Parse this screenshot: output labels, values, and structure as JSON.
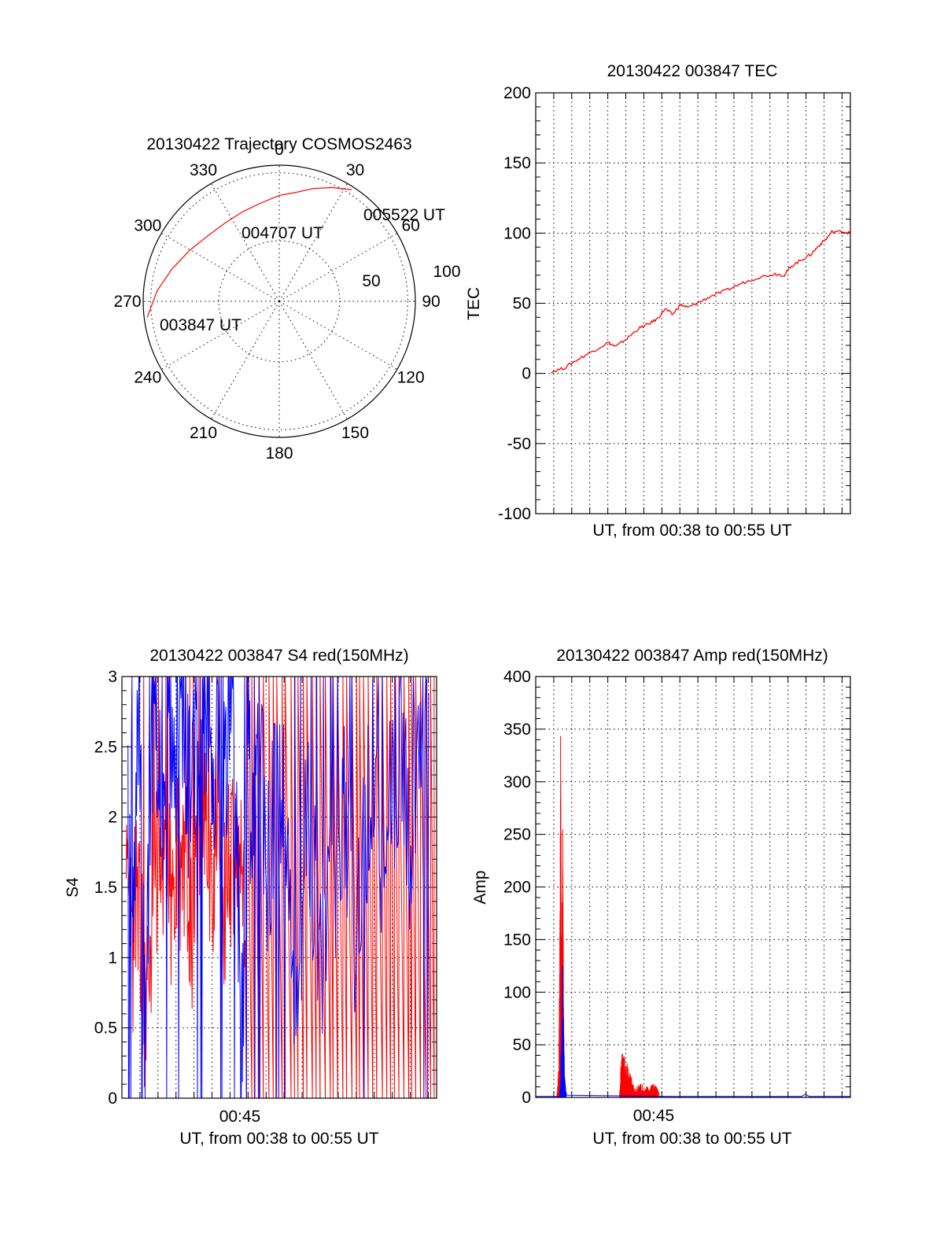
{
  "colors": {
    "red": "#ff0000",
    "blue": "#0000ff",
    "axis": "#000000"
  },
  "chart_data": [
    {
      "id": "polar",
      "type": "scatter",
      "title": "20130422 Trajectory COSMOS2463",
      "angle_labels": [
        "0",
        "30",
        "60",
        "90",
        "120",
        "150",
        "180",
        "210",
        "240",
        "270",
        "300",
        "330"
      ],
      "radial_labels": [
        "50",
        "100"
      ],
      "track": {
        "name": "",
        "points": [
          {
            "az": 263,
            "el": 2
          },
          {
            "az": 275,
            "el": 9
          },
          {
            "az": 287,
            "el": 16
          },
          {
            "az": 300,
            "el": 22
          },
          {
            "az": 313,
            "el": 26
          },
          {
            "az": 326,
            "el": 27
          },
          {
            "az": 338,
            "el": 26
          },
          {
            "az": 349,
            "el": 24
          },
          {
            "az": 0,
            "el": 20
          },
          {
            "az": 9,
            "el": 17
          },
          {
            "az": 17,
            "el": 12
          },
          {
            "az": 25,
            "el": 7
          },
          {
            "az": 33,
            "el": 2
          }
        ]
      },
      "annotations": [
        "003847 UT",
        "004707 UT",
        "005522 UT"
      ]
    },
    {
      "id": "tec",
      "type": "line",
      "title": "20130422 003847 TEC",
      "xlabel": "UT, from 00:38 to 00:55 UT",
      "ylabel": "TEC",
      "xlim": [
        38.78,
        55.37
      ],
      "ylim": [
        -100,
        200
      ],
      "yticks": [
        "-100",
        "-50",
        "0",
        "50",
        "100",
        "150",
        "200"
      ],
      "x_gridlines_minutes": [
        39.73,
        40.68,
        41.63,
        42.58,
        43.53,
        44.48,
        45.43,
        46.38,
        47.33,
        48.28,
        49.23,
        50.18,
        51.13,
        52.08,
        53.03,
        53.98,
        54.93
      ],
      "series": [
        {
          "name": "",
          "x": [
            39.6,
            40.3,
            41.0,
            41.8,
            42.6,
            43.0,
            43.6,
            44.2,
            44.7,
            45.2,
            45.6,
            46.0,
            46.4,
            46.8,
            47.3,
            48.0,
            48.8,
            49.6,
            50.4,
            51.4,
            51.9,
            52.2,
            52.8,
            53.3,
            53.7,
            54.1,
            54.4,
            55.0,
            55.37
          ],
          "y": [
            1,
            4,
            10,
            16,
            22,
            19,
            25,
            32,
            35,
            39,
            46,
            42,
            49,
            47,
            50,
            55,
            59,
            64,
            68,
            71,
            70,
            76,
            81,
            85,
            91,
            96,
            101,
            101,
            100
          ]
        }
      ]
    },
    {
      "id": "s4",
      "type": "line",
      "title": "20130422 003847 S4 red(150MHz)",
      "xlabel": "UT, from 00:38 to 00:55 UT",
      "ylabel": "S4",
      "xlim": [
        38.78,
        55.37
      ],
      "ylim": [
        0,
        3
      ],
      "yticks": [
        "0",
        "0.5",
        "1",
        "1.5",
        "2",
        "2.5",
        "3"
      ],
      "xticks": [
        "00:45"
      ],
      "xtick_minutes": [
        45
      ],
      "series": [
        {
          "name": "",
          "color": "red",
          "x": [
            39.0,
            39.3,
            39.6,
            39.9,
            40.2,
            40.5,
            40.8,
            41.1,
            41.4,
            41.7,
            42.0,
            42.3,
            42.6,
            42.9,
            43.2,
            43.5,
            43.8,
            44.1,
            44.4,
            44.7,
            45.0,
            45.3
          ],
          "y": [
            1.3,
            1.0,
            1.7,
            0.7,
            0.9,
            1.9,
            1.4,
            2.1,
            1.3,
            1.7,
            1.8,
            1.1,
            1.3,
            1.7,
            2.0,
            1.6,
            2.0,
            1.3,
            1.8,
            1.5,
            1.9,
            1.1
          ]
        },
        {
          "name": "",
          "color": "blue",
          "x": [
            39.1,
            39.4,
            39.7,
            40.0,
            40.3,
            40.6,
            40.9,
            41.2,
            41.5,
            41.8,
            42.1,
            42.4,
            42.7,
            43.0,
            43.3,
            43.6,
            43.9,
            44.2,
            44.5,
            44.8,
            45.1,
            45.4,
            45.7,
            46.0,
            46.5,
            47.0,
            47.5,
            48.0,
            48.5,
            49.0,
            49.5,
            50.0,
            50.5,
            51.0,
            51.5,
            52.0,
            52.5,
            53.0,
            53.5,
            54.0,
            54.5,
            55.0
          ],
          "y": [
            2.3,
            1.7,
            2.8,
            0.2,
            2.4,
            2.9,
            1.9,
            2.8,
            2.2,
            2.9,
            2.5,
            2.0,
            2.8,
            2.3,
            2.9,
            2.1,
            2.7,
            2.4,
            2.8,
            2.2,
            0.4,
            2.6,
            1.8,
            2.5,
            1.6,
            2.4,
            1.7,
            0.4,
            2.2,
            1.3,
            1.1,
            1.5,
            2.1,
            1.2,
            1.7,
            2.4,
            1.6,
            2.2,
            2.6,
            1.5,
            2.9,
            2.3
          ]
        }
      ]
    },
    {
      "id": "amp",
      "type": "line",
      "title": "20130422 003847 Amp red(150MHz)",
      "xlabel": "UT, from 00:38 to 00:55 UT",
      "ylabel": "Amp",
      "xlim": [
        38.78,
        55.37
      ],
      "ylim": [
        0,
        400
      ],
      "yticks": [
        "0",
        "50",
        "100",
        "150",
        "200",
        "250",
        "300",
        "350",
        "400"
      ],
      "xticks": [
        "00:45"
      ],
      "xtick_minutes": [
        45
      ],
      "series": [
        {
          "name": "",
          "color": "red",
          "x": [
            38.8,
            39.9,
            40.0,
            40.1,
            40.15,
            40.2,
            40.25,
            40.3,
            40.4,
            43.2,
            43.3,
            43.4,
            43.6,
            43.8,
            44.0,
            44.3,
            44.6,
            44.9,
            45.2,
            45.3,
            45.4
          ],
          "y": [
            0,
            0,
            30,
            340,
            120,
            250,
            80,
            0,
            0,
            0,
            40,
            38,
            30,
            20,
            8,
            12,
            9,
            12,
            10,
            0,
            0
          ]
        },
        {
          "name": "",
          "color": "blue",
          "x": [
            38.8,
            40.05,
            40.15,
            40.2,
            40.3,
            40.4,
            46.0,
            52.8,
            53.0,
            53.2,
            55.37
          ],
          "y": [
            1,
            1,
            60,
            120,
            20,
            2,
            1,
            1,
            3,
            1,
            1
          ]
        }
      ]
    }
  ]
}
